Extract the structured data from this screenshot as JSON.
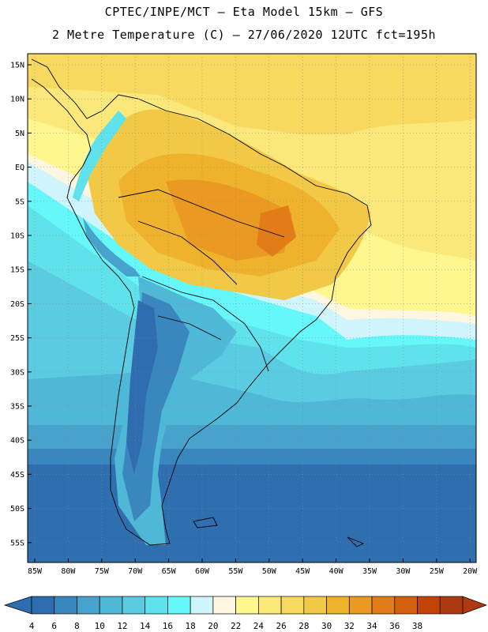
{
  "header": {
    "title_line1": "CPTEC/INPE/MCT –  Eta Model 15km – GFS",
    "title_line2": "2 Metre Temperature (C) – 27/06/2020 12UTC fct=195h"
  },
  "map": {
    "lat_labels": [
      "15N",
      "10N",
      "5N",
      "EQ",
      "5S",
      "10S",
      "15S",
      "20S",
      "25S",
      "30S",
      "35S",
      "40S",
      "45S",
      "50S",
      "55S"
    ],
    "lon_labels": [
      "85W",
      "80W",
      "75W",
      "70W",
      "65W",
      "60W",
      "55W",
      "50W",
      "45W",
      "40W",
      "35W",
      "30W",
      "25W",
      "20W"
    ]
  },
  "colorbar": {
    "levels": [
      "4",
      "6",
      "8",
      "10",
      "12",
      "14",
      "16",
      "18",
      "20",
      "22",
      "24",
      "26",
      "28",
      "30",
      "32",
      "34",
      "36",
      "38"
    ],
    "colors": [
      "#2e6db0",
      "#3a86bf",
      "#47a3cc",
      "#4fb8d6",
      "#5acbe0",
      "#5fe2ec",
      "#66f7fb",
      "#cff4fb",
      "#fdf6e0",
      "#fff68f",
      "#fbe87a",
      "#f7d960",
      "#f2c847",
      "#efb22c",
      "#ea9a22",
      "#e27c17",
      "#d45f0d",
      "#c24306",
      "#ad3a10"
    ]
  }
}
